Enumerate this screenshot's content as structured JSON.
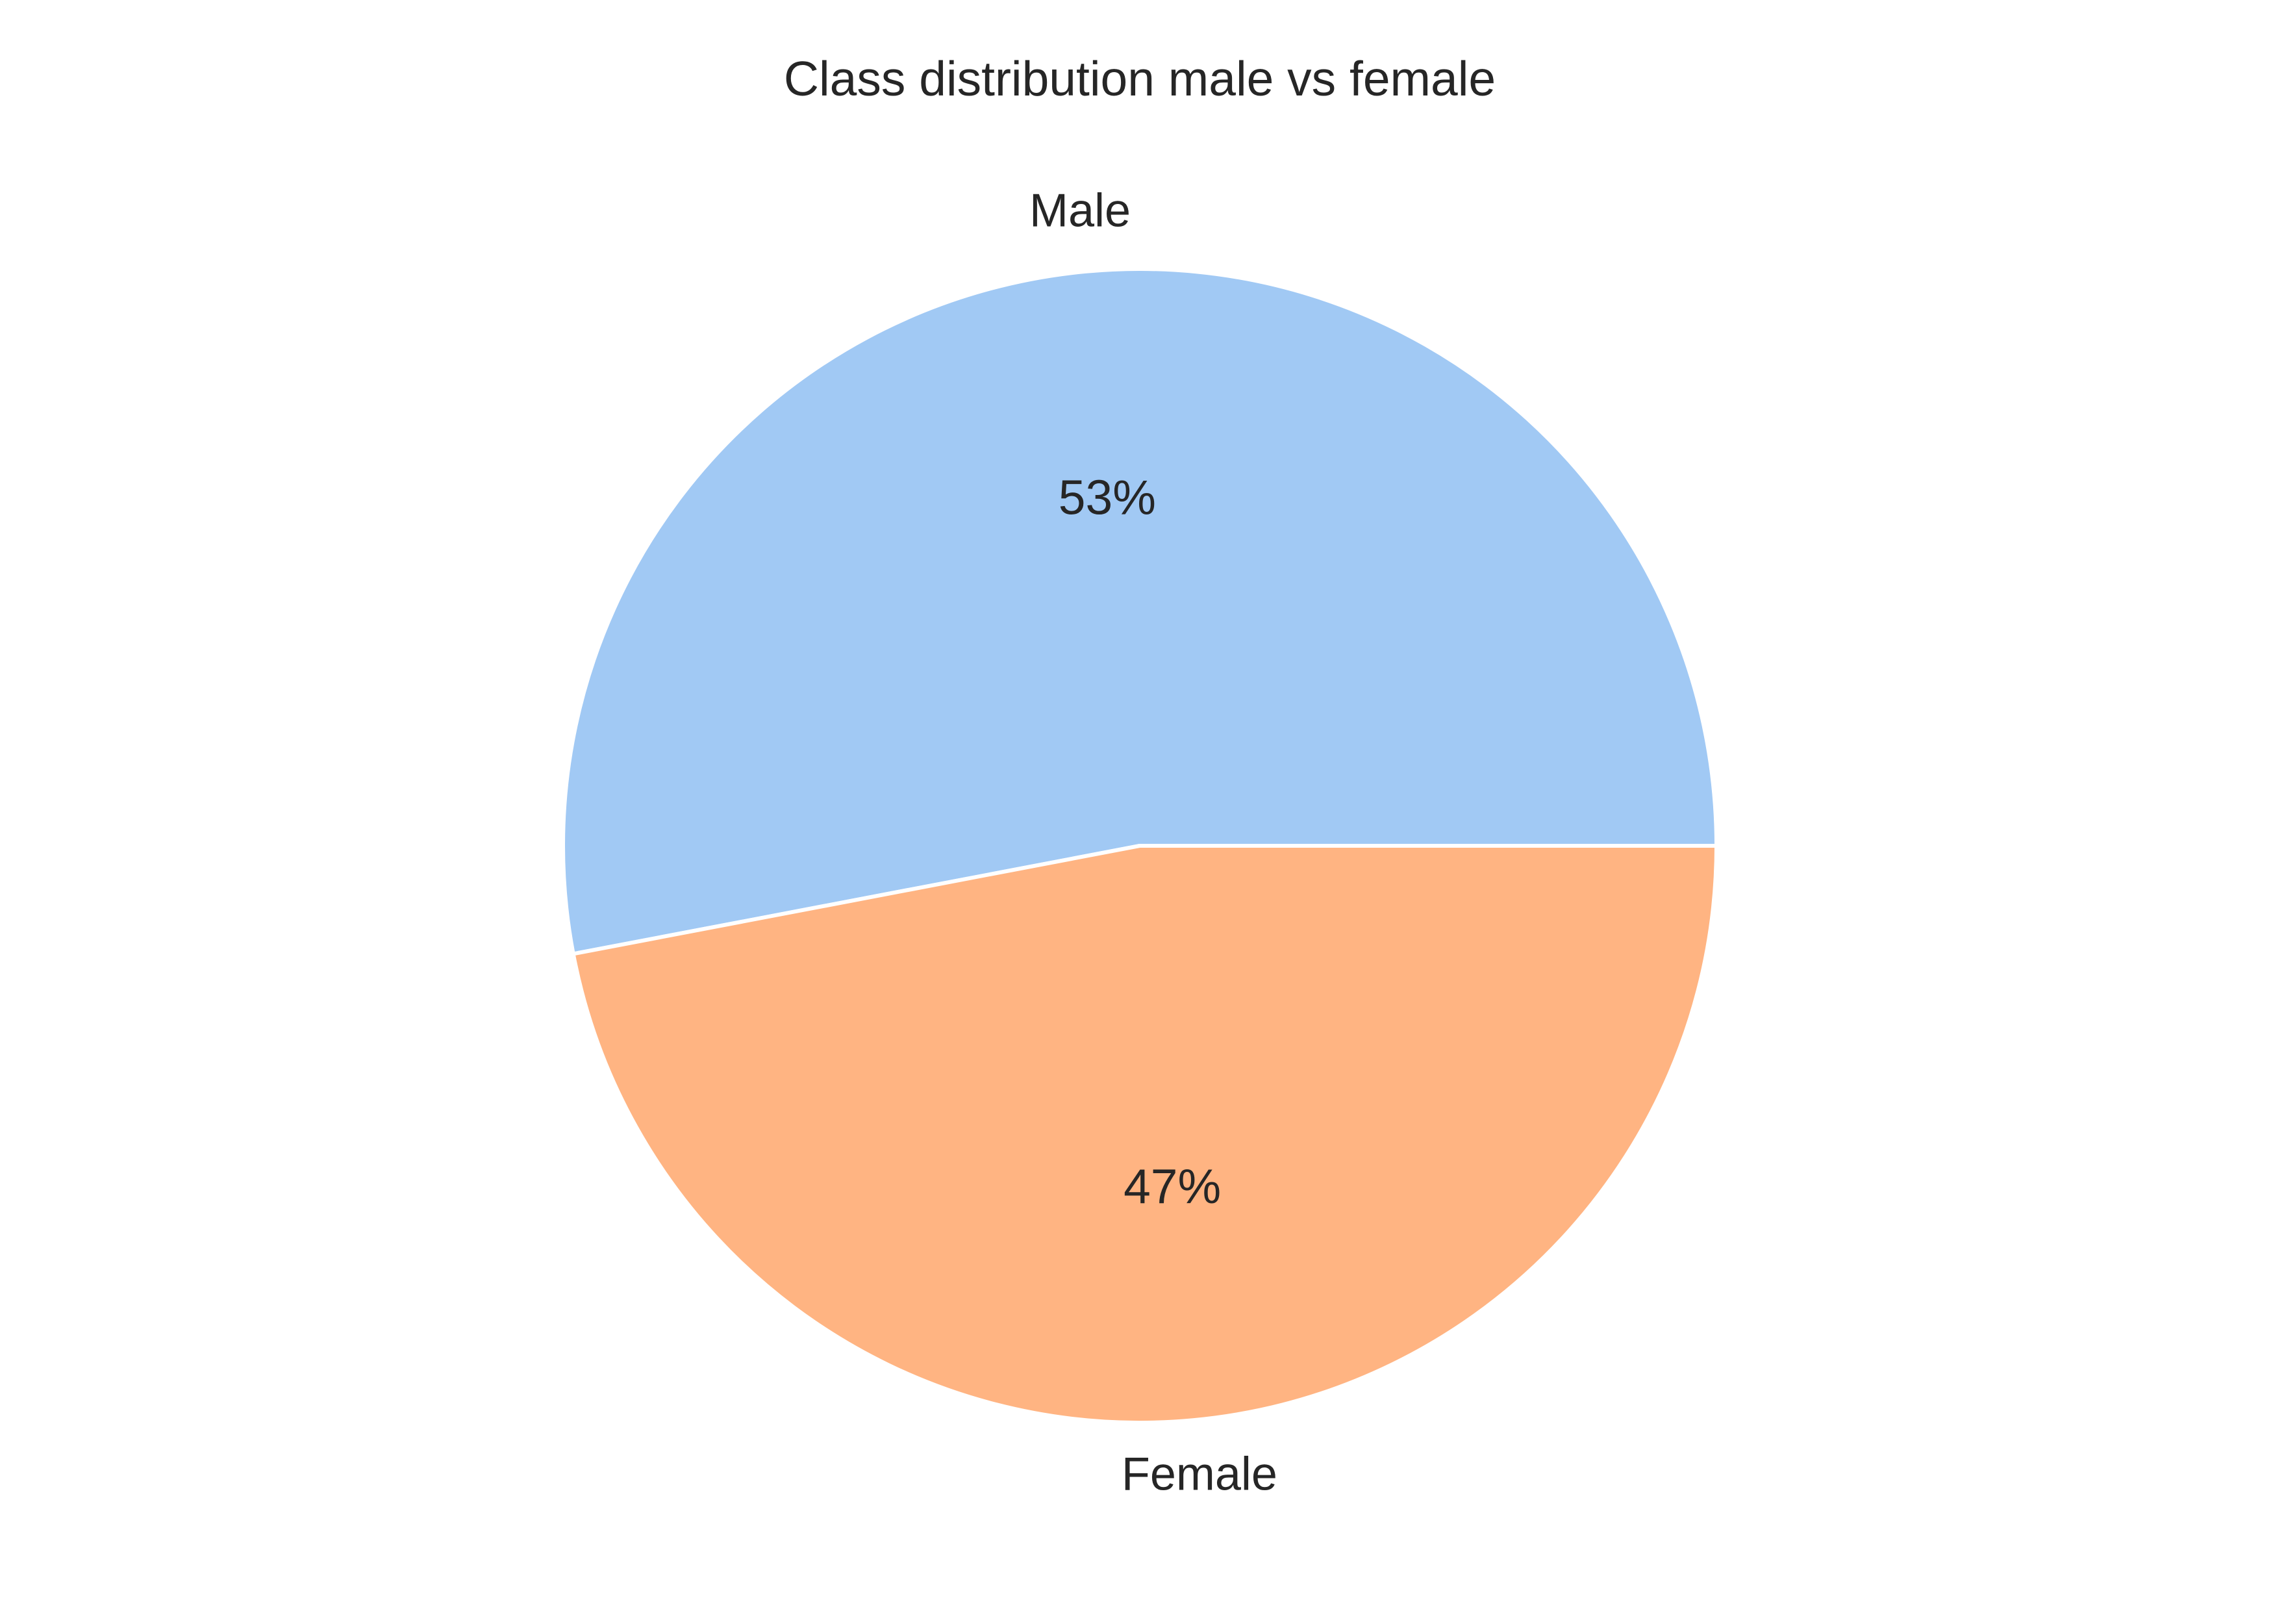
{
  "chart_data": {
    "type": "pie",
    "title": "Class distribution male vs female",
    "categories": [
      "Male",
      "Female"
    ],
    "values": [
      53,
      47
    ],
    "value_labels": [
      "53%",
      "47%"
    ],
    "colors": [
      "#a1c9f4",
      "#ffb482"
    ],
    "start_angle_deg": 0,
    "direction": "counterclockwise",
    "legend": "none",
    "grid": false
  }
}
